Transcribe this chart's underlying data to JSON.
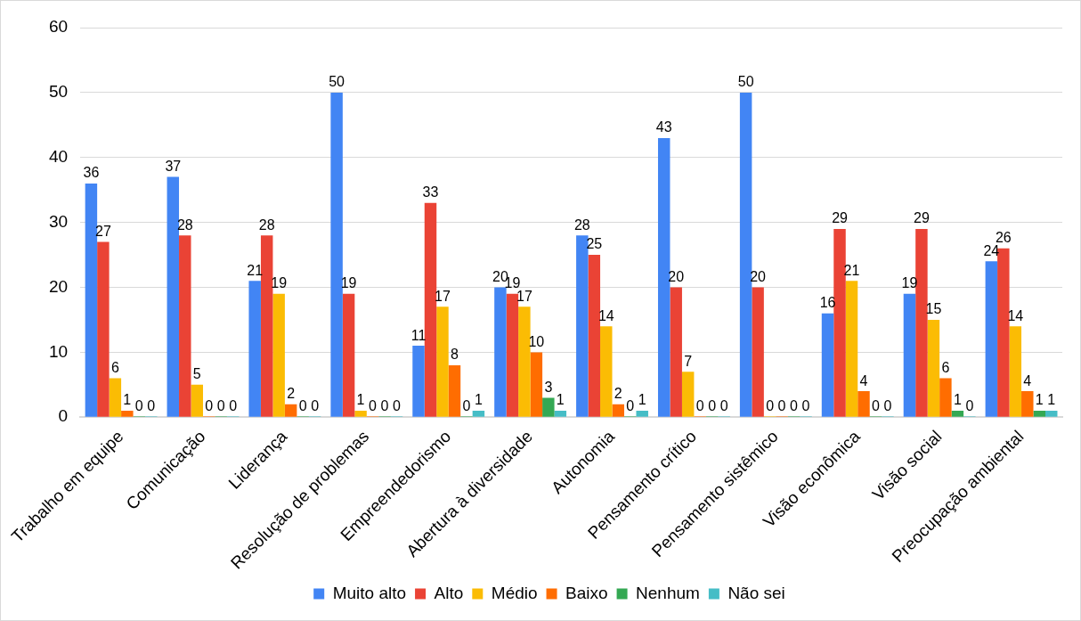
{
  "chart_data": {
    "type": "bar",
    "categories": [
      "Trabalho em equipe",
      "Comunicação",
      "Liderança",
      "Resolução de problemas",
      "Empreendedorismo",
      "Abertura à diversidade",
      "Autonomia",
      "Pensamento crítico",
      "Pensamento sistêmico",
      "Visão econômica",
      "Visão social",
      "Preocupação ambiental"
    ],
    "series": [
      {
        "name": "Muito alto",
        "color": "#4285f4",
        "values": [
          36,
          37,
          21,
          50,
          11,
          20,
          28,
          43,
          50,
          16,
          19,
          24
        ]
      },
      {
        "name": "Alto",
        "color": "#ea4335",
        "values": [
          27,
          28,
          28,
          19,
          33,
          19,
          25,
          20,
          20,
          29,
          29,
          26
        ]
      },
      {
        "name": "Médio",
        "color": "#fbbc04",
        "values": [
          6,
          5,
          19,
          1,
          17,
          17,
          14,
          7,
          0,
          21,
          15,
          14
        ]
      },
      {
        "name": "Baixo",
        "color": "#ff6d01",
        "values": [
          1,
          0,
          2,
          0,
          8,
          10,
          2,
          0,
          0,
          4,
          6,
          4
        ]
      },
      {
        "name": "Nenhum",
        "color": "#34a853",
        "values": [
          0,
          0,
          0,
          0,
          0,
          3,
          0,
          0,
          0,
          0,
          1,
          1
        ]
      },
      {
        "name": "Não sei",
        "color": "#46bdc6",
        "values": [
          0,
          0,
          0,
          0,
          1,
          1,
          1,
          0,
          0,
          0,
          0,
          1
        ]
      }
    ],
    "ylim": [
      0,
      60
    ],
    "yticks": [
      0,
      10,
      20,
      30,
      40,
      50,
      60
    ],
    "grid": "y",
    "legend": "bottom",
    "data_labels": true
  }
}
